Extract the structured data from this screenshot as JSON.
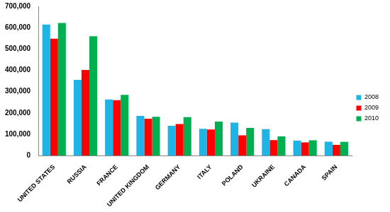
{
  "chart_data": {
    "type": "bar",
    "categories": [
      "UNITED STATES",
      "RUSSIA",
      "FRANCE",
      "UNITED KINGDOM",
      "GERMANY",
      "ITALY",
      "POLAND",
      "UKRAINE",
      "CANADA",
      "SPAIN"
    ],
    "series": [
      {
        "name": "2008",
        "color": "#1fb4e6",
        "values": [
          615000,
          355000,
          263000,
          186000,
          140000,
          126000,
          155000,
          124000,
          70000,
          65000
        ]
      },
      {
        "name": "2009",
        "color": "#ff0000",
        "values": [
          548000,
          402000,
          260000,
          173000,
          148000,
          122000,
          95000,
          73000,
          62000,
          50000
        ]
      },
      {
        "name": "2010",
        "color": "#00b050",
        "values": [
          622000,
          560000,
          285000,
          182000,
          180000,
          160000,
          130000,
          90000,
          72000,
          64000
        ]
      }
    ],
    "ylim": [
      0,
      700000
    ],
    "yticks": [
      0,
      {
        "value": 100000,
        "label": "100,000"
      },
      {
        "value": 200000,
        "label": "200,000"
      },
      {
        "value": 300000,
        "label": "300,000"
      },
      {
        "value": 400000,
        "label": "400,000"
      },
      {
        "value": 500000,
        "label": "500,000"
      },
      {
        "value": 600000,
        "label": "600,000"
      },
      {
        "value": 700000,
        "label": "700,000"
      }
    ],
    "grid": false,
    "legend": "right"
  }
}
